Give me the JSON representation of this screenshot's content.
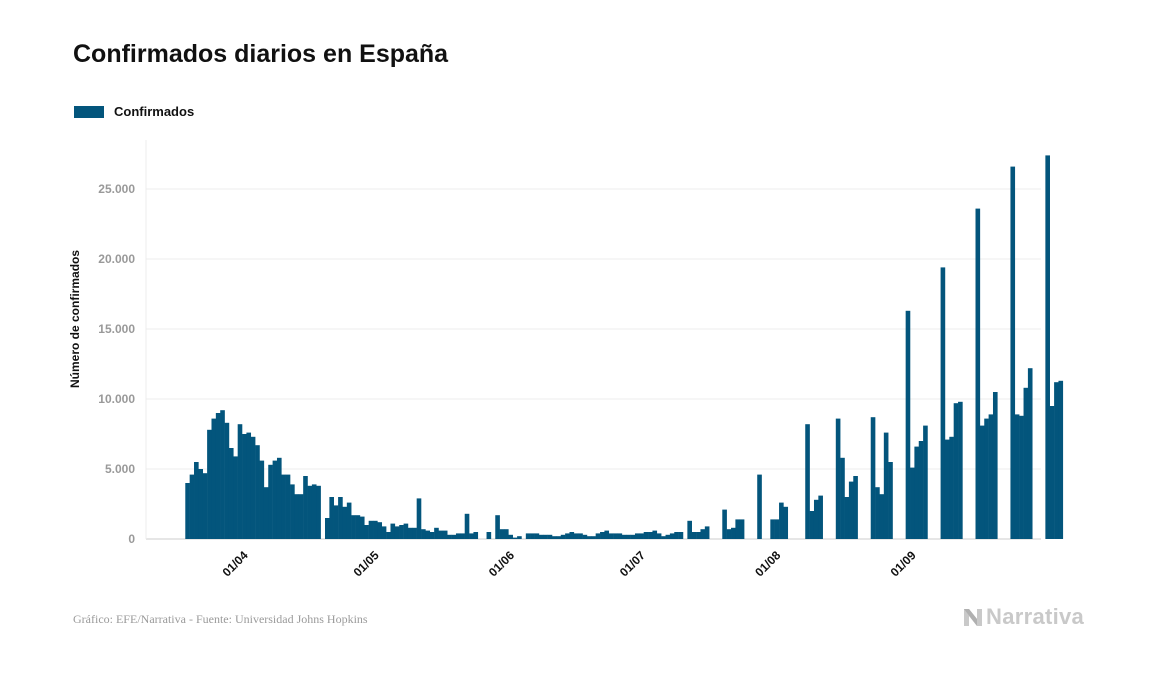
{
  "chart_data": {
    "type": "bar",
    "title": "Confirmados diarios en España",
    "ylabel": "Número de confirmados",
    "xlabel": "",
    "legend": "top-left",
    "grid": true,
    "ylim": [
      0,
      28500
    ],
    "y_ticks": [
      {
        "value": 0,
        "label": "0"
      },
      {
        "value": 5000,
        "label": "5.000"
      },
      {
        "value": 10000,
        "label": "10.000"
      },
      {
        "value": 15000,
        "label": "15.000"
      },
      {
        "value": 20000,
        "label": "20.000"
      },
      {
        "value": 25000,
        "label": "25.000"
      }
    ],
    "x_ticks": [
      {
        "date": "2020-04-01",
        "label": "01/04"
      },
      {
        "date": "2020-05-01",
        "label": "01/05"
      },
      {
        "date": "2020-06-01",
        "label": "01/06"
      },
      {
        "date": "2020-07-01",
        "label": "01/07"
      },
      {
        "date": "2020-08-01",
        "label": "01/08"
      },
      {
        "date": "2020-09-01",
        "label": "01/09"
      }
    ],
    "x_range": [
      "2020-03-09",
      "2020-09-30"
    ],
    "series": [
      {
        "name": "Confirmados",
        "color": "#03557c",
        "start_date": "2020-03-18",
        "values": [
          4000,
          4600,
          5500,
          5000,
          4700,
          7800,
          8600,
          9000,
          9200,
          8300,
          6500,
          5900,
          8200,
          7500,
          7600,
          7300,
          6700,
          5600,
          3700,
          5300,
          5600,
          5800,
          4600,
          4600,
          3900,
          3200,
          3200,
          4500,
          3800,
          3900,
          3800,
          0,
          1500,
          3000,
          2400,
          3000,
          2300,
          2600,
          1700,
          1700,
          1600,
          1000,
          1300,
          1300,
          1200,
          900,
          500,
          1100,
          900,
          1000,
          1100,
          800,
          800,
          2900,
          700,
          600,
          500,
          800,
          600,
          600,
          300,
          300,
          400,
          400,
          1800,
          400,
          500,
          0,
          0,
          500,
          0,
          1700,
          700,
          700,
          300,
          100,
          200,
          0,
          400,
          400,
          400,
          300,
          300,
          300,
          200,
          200,
          300,
          400,
          500,
          400,
          400,
          300,
          200,
          200,
          400,
          500,
          600,
          400,
          400,
          400,
          300,
          300,
          300,
          400,
          400,
          500,
          500,
          600,
          400,
          200,
          300,
          400,
          500,
          500,
          0,
          1300,
          500,
          500,
          700,
          900,
          0,
          0,
          0,
          2100,
          700,
          800,
          1400,
          1400,
          0,
          0,
          0,
          4600,
          0,
          0,
          1400,
          1400,
          2600,
          2300,
          0,
          0,
          0,
          0,
          8200,
          2000,
          2800,
          3100,
          0,
          0,
          0,
          8600,
          5800,
          3000,
          4100,
          4500,
          0,
          0,
          0,
          8700,
          3700,
          3200,
          7600,
          5500,
          0,
          0,
          0,
          16300,
          5100,
          6600,
          7000,
          8100,
          0,
          0,
          0,
          19400,
          7100,
          7300,
          9700,
          9800,
          0,
          0,
          0,
          23600,
          8100,
          8600,
          8900,
          10500,
          0,
          0,
          0,
          26600,
          8900,
          8800,
          10800,
          12200,
          0,
          0,
          0,
          27400,
          9500,
          11200,
          11300
        ]
      }
    ]
  },
  "footer": {
    "source": "Gráfico: EFE/Narrativa - Fuente: Universidad Johns Hopkins",
    "brand": "Narrativa"
  }
}
